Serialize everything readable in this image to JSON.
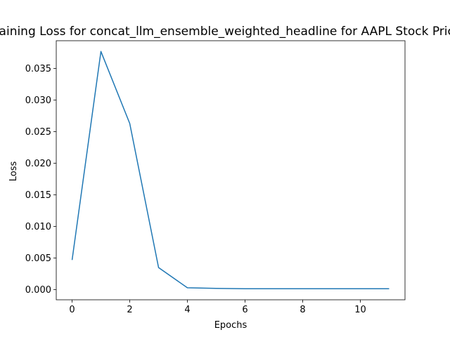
{
  "chart_data": {
    "type": "line",
    "title": "Training Loss for concat_llm_ensemble_weighted_headline for AAPL Stock Price",
    "xlabel": "Epochs",
    "ylabel": "Loss",
    "xlim": [
      -0.55,
      11.55
    ],
    "ylim": [
      -0.0016,
      0.0394
    ],
    "x_ticks": [
      0,
      2,
      4,
      6,
      8,
      10
    ],
    "x_tick_labels": [
      "0",
      "2",
      "4",
      "6",
      "8",
      "10"
    ],
    "y_ticks": [
      0.0,
      0.005,
      0.01,
      0.015,
      0.02,
      0.025,
      0.03,
      0.035
    ],
    "y_tick_labels": [
      "0.000",
      "0.005",
      "0.010",
      "0.015",
      "0.020",
      "0.025",
      "0.030",
      "0.035"
    ],
    "grid": false,
    "series": [
      {
        "x": [
          0,
          1,
          2,
          3,
          4,
          5,
          6,
          7,
          8,
          9,
          10,
          11
        ],
        "values": [
          0.0047,
          0.0377,
          0.0263,
          0.0035,
          0.0003,
          0.0002,
          0.00015,
          0.00015,
          0.00015,
          0.00015,
          0.00015,
          0.00015
        ],
        "color": "#1f77b4"
      }
    ]
  }
}
